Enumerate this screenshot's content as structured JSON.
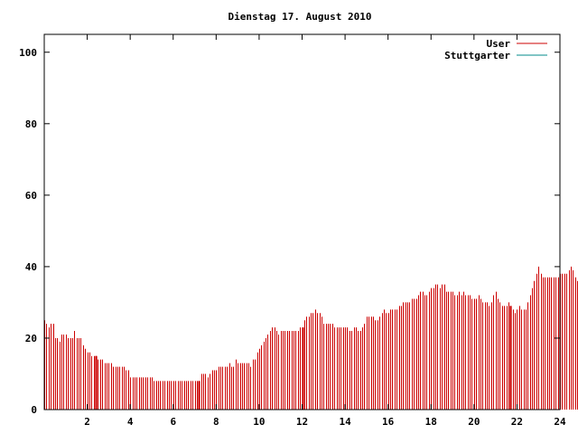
{
  "chart_data": {
    "type": "bar",
    "title": "Dienstag 17. August 2010",
    "xlabel": "",
    "ylabel": "",
    "xlim": [
      0,
      24
    ],
    "ylim": [
      0,
      105
    ],
    "xticks": [
      2,
      4,
      6,
      8,
      10,
      12,
      14,
      16,
      18,
      20,
      22,
      24
    ],
    "yticks": [
      0,
      20,
      40,
      60,
      80,
      100
    ],
    "grid": false,
    "legend_position": "top-right",
    "colors": {
      "User": "#cc0000",
      "Stuttgarter": "#008b8b"
    },
    "series": [
      {
        "name": "User",
        "x_start": 0.0,
        "x_step": 0.1,
        "values": [
          25,
          24,
          23,
          24,
          24,
          20,
          20,
          19,
          21,
          21,
          21,
          20,
          20,
          20,
          22,
          20,
          20,
          20,
          18,
          17,
          16,
          16,
          15,
          15,
          15,
          14,
          14,
          14,
          13,
          13,
          13,
          13,
          12,
          12,
          12,
          12,
          12,
          12,
          11,
          11,
          9,
          9,
          9,
          9,
          9,
          9,
          9,
          9,
          9,
          9,
          9,
          8,
          8,
          8,
          8,
          8,
          8,
          8,
          8,
          8,
          8,
          8,
          8,
          8,
          8,
          8,
          8,
          8,
          8,
          8,
          8,
          8,
          8,
          10,
          10,
          10,
          9,
          10,
          11,
          11,
          11,
          12,
          12,
          12,
          12,
          12,
          13,
          12,
          12,
          14,
          13,
          13,
          13,
          13,
          13,
          13,
          12,
          14,
          14,
          16,
          17,
          18,
          19,
          20,
          21,
          22,
          23,
          23,
          22,
          21,
          22,
          22,
          22,
          22,
          22,
          22,
          22,
          22,
          22,
          23,
          23,
          25,
          26,
          26,
          27,
          27,
          28,
          27,
          27,
          26,
          24,
          24,
          24,
          24,
          24,
          23,
          23,
          23,
          23,
          23,
          23,
          23,
          22,
          22,
          23,
          23,
          22,
          22,
          23,
          24,
          26,
          26,
          26,
          26,
          25,
          25,
          26,
          27,
          28,
          27,
          27,
          28,
          28,
          28,
          28,
          29,
          29,
          30,
          30,
          30,
          30,
          31,
          31,
          31,
          32,
          33,
          33,
          32,
          32,
          33,
          34,
          34,
          35,
          35,
          34,
          35,
          35,
          33,
          33,
          33,
          33,
          32,
          32,
          33,
          32,
          33,
          32,
          32,
          32,
          31,
          31,
          31,
          32,
          31,
          30,
          30,
          30,
          29,
          30,
          32,
          33,
          31,
          30,
          29,
          29,
          29,
          30,
          29,
          28,
          27,
          28,
          29,
          28,
          28,
          28,
          30,
          32,
          34,
          36,
          38,
          40,
          38,
          37,
          37,
          37,
          37,
          37,
          37,
          37,
          37,
          38,
          38,
          38,
          38,
          39,
          40,
          39,
          37,
          36,
          35,
          35,
          35,
          36,
          36,
          36,
          36,
          36,
          37,
          38,
          39,
          42,
          42,
          41,
          41,
          41,
          41,
          41,
          42,
          41,
          41,
          40,
          39
        ]
      },
      {
        "name": "Stuttgarter",
        "values": []
      }
    ],
    "highlight_bars": [
      2.4,
      7.2,
      12.0,
      21.7
    ]
  }
}
